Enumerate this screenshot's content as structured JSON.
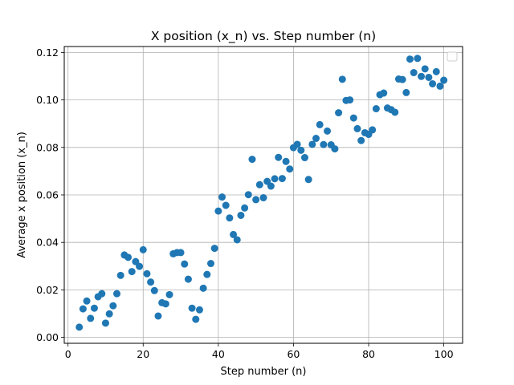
{
  "chart_data": {
    "type": "scatter",
    "title": "X position (x_n) vs. Step number (n)",
    "xlabel": "Step number (n)",
    "ylabel": "Average x position (x_n)",
    "xlim": [
      -1,
      105
    ],
    "ylim": [
      -0.0025,
      0.1225
    ],
    "xticks": [
      0,
      20,
      40,
      60,
      80,
      100
    ],
    "xtick_labels": [
      "0",
      "20",
      "40",
      "60",
      "80",
      "100"
    ],
    "yticks": [
      0.0,
      0.02,
      0.04,
      0.06,
      0.08,
      0.1,
      0.12
    ],
    "ytick_labels": [
      "0.00",
      "0.02",
      "0.04",
      "0.06",
      "0.08",
      "0.10",
      "0.12"
    ],
    "grid": true,
    "legend": "top-right (empty)",
    "colors": {
      "marker": "#1f77b4",
      "grid": "#b0b0b0"
    },
    "x": [
      3,
      4,
      5,
      6,
      7,
      8,
      9,
      10,
      11,
      12,
      13,
      14,
      15,
      16,
      17,
      18,
      19,
      20,
      21,
      22,
      23,
      24,
      25,
      26,
      27,
      28,
      29,
      30,
      31,
      32,
      33,
      34,
      35,
      36,
      37,
      38,
      39,
      40,
      41,
      42,
      43,
      44,
      45,
      46,
      47,
      48,
      49,
      50,
      51,
      52,
      53,
      54,
      55,
      56,
      57,
      58,
      59,
      60,
      61,
      62,
      63,
      64,
      65,
      66,
      67,
      68,
      69,
      70,
      71,
      72,
      73,
      74,
      75,
      76,
      77,
      78,
      79,
      80,
      81,
      82,
      83,
      84,
      85,
      86,
      87,
      88,
      89,
      90,
      91,
      92,
      93,
      94,
      95,
      96,
      97,
      98,
      99,
      100
    ],
    "y": [
      0.0043,
      0.012,
      0.0153,
      0.008,
      0.0123,
      0.0171,
      0.0184,
      0.006,
      0.0099,
      0.0133,
      0.0184,
      0.0261,
      0.0347,
      0.0337,
      0.0277,
      0.0319,
      0.0299,
      0.0369,
      0.0268,
      0.0233,
      0.0197,
      0.009,
      0.0146,
      0.0141,
      0.018,
      0.0352,
      0.0357,
      0.0357,
      0.0309,
      0.0245,
      0.0123,
      0.0076,
      0.0116,
      0.0207,
      0.0265,
      0.0311,
      0.0375,
      0.0532,
      0.0591,
      0.0556,
      0.0503,
      0.0433,
      0.0411,
      0.0514,
      0.0545,
      0.0601,
      0.075,
      0.058,
      0.0643,
      0.0588,
      0.0657,
      0.0637,
      0.0668,
      0.0758,
      0.0669,
      0.0741,
      0.0709,
      0.0799,
      0.0813,
      0.0788,
      0.0757,
      0.0665,
      0.0813,
      0.0838,
      0.0896,
      0.0812,
      0.0869,
      0.0811,
      0.0794,
      0.0946,
      0.1087,
      0.0998,
      0.1,
      0.0924,
      0.0879,
      0.0829,
      0.0862,
      0.0855,
      0.0874,
      0.0963,
      0.1022,
      0.1029,
      0.0966,
      0.0959,
      0.0948,
      0.1088,
      0.1086,
      0.1031,
      0.1172,
      0.1115,
      0.1175,
      0.1099,
      0.1131,
      0.1095,
      0.1068,
      0.1119,
      0.1058,
      0.1083
    ]
  }
}
